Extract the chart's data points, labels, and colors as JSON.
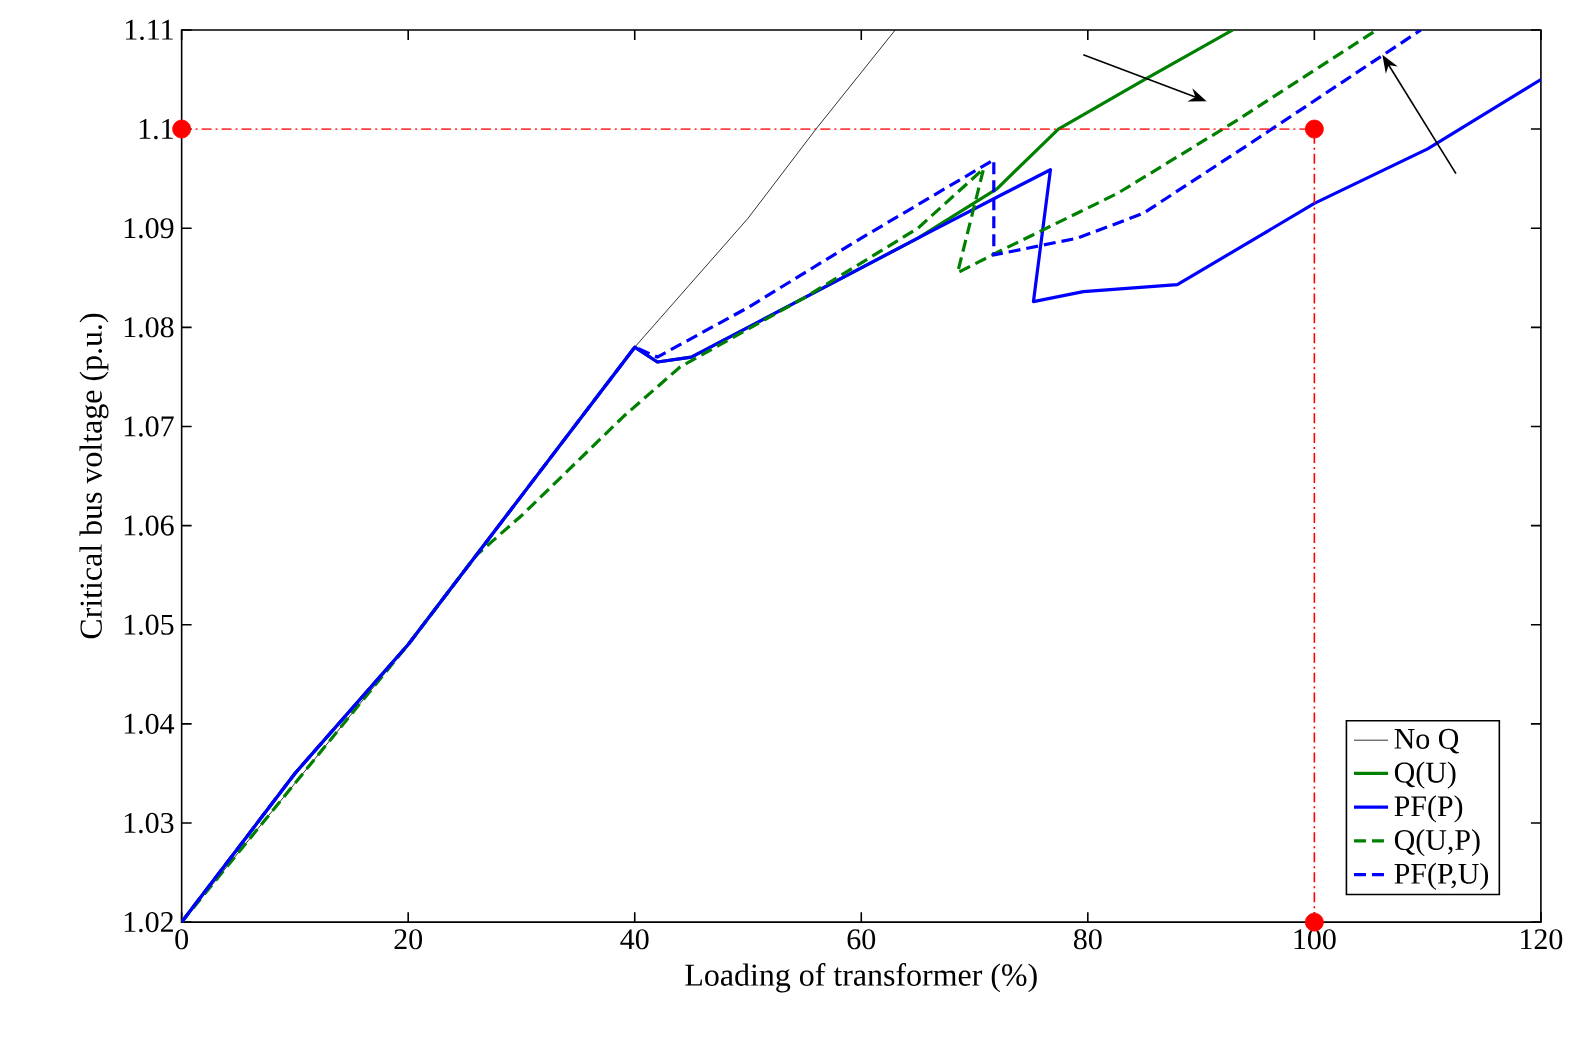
{
  "chart_data": {
    "type": "line",
    "xlabel": "Loading of transformer (%)",
    "ylabel": "Critical bus voltage (p.u.)",
    "xlim": [
      0,
      120
    ],
    "ylim": [
      1.02,
      1.11
    ],
    "xticks": [
      0,
      20,
      40,
      60,
      80,
      100,
      120
    ],
    "yticks": [
      1.02,
      1.03,
      1.04,
      1.05,
      1.06,
      1.07,
      1.08,
      1.09,
      1.1,
      1.11
    ],
    "grid": false,
    "legend": "bottom right",
    "marker": "none",
    "series": [
      {
        "name": "No Q",
        "color": "#000000",
        "line_style": "solid",
        "x": [
          0,
          10,
          20,
          30,
          40,
          50,
          56,
          63
        ],
        "values": [
          1.02,
          1.034,
          1.048,
          1.063,
          1.078,
          1.091,
          1.1,
          1.11
        ]
      },
      {
        "name": "Q(U)",
        "color": "#008000",
        "line_style": "solid",
        "x": [
          0,
          10,
          20,
          30,
          40,
          42,
          45,
          55,
          65,
          72,
          77.4,
          85,
          92.8
        ],
        "values": [
          1.02,
          1.035,
          1.048,
          1.063,
          1.078,
          1.0765,
          1.077,
          1.083,
          1.089,
          1.094,
          1.1,
          1.105,
          1.11
        ]
      },
      {
        "name": "PF(P)",
        "color": "#0000ff",
        "line_style": "solid",
        "x": [
          0,
          10,
          20,
          30,
          40,
          42,
          45,
          55,
          65,
          72.6,
          76.7,
          75.2,
          79.6,
          87.9,
          100,
          110,
          120
        ],
        "values": [
          1.02,
          1.035,
          1.048,
          1.063,
          1.078,
          1.0765,
          1.077,
          1.083,
          1.089,
          1.0935,
          1.0959,
          1.0826,
          1.0836,
          1.0843,
          1.0925,
          1.098,
          1.105
        ]
      },
      {
        "name": "Q(U,P)",
        "color": "#008000",
        "line_style": "dashed",
        "x": [
          0,
          10,
          20,
          26,
          30,
          39,
          44,
          55,
          65,
          70.8,
          68.5,
          72.6,
          82.6,
          93.2,
          105.5
        ],
        "values": [
          1.02,
          1.034,
          1.048,
          1.057,
          1.061,
          1.071,
          1.076,
          1.083,
          1.09,
          1.096,
          1.0855,
          1.0879,
          1.0935,
          1.1009,
          1.11
        ]
      },
      {
        "name": "PF(P,U)",
        "color": "#0000ff",
        "line_style": "dashed",
        "x": [
          0,
          10,
          20,
          30,
          40,
          42,
          50,
          60,
          71.7,
          71.7,
          79.1,
          84.9,
          94.4,
          109.4
        ],
        "values": [
          1.02,
          1.035,
          1.048,
          1.063,
          1.078,
          1.077,
          1.082,
          1.089,
          1.0969,
          1.0873,
          1.089,
          1.0915,
          1.0986,
          1.11
        ]
      },
      {
        "type": "scatter",
        "color": "#ff0000",
        "marker": "circle",
        "x": [
          0,
          100,
          100
        ],
        "values": [
          1.1,
          1.1,
          1.02
        ]
      }
    ],
    "ref_lines": [
      {
        "axis": "y",
        "value": 1.1,
        "color": "#ff0000",
        "line_style": "dashdot"
      },
      {
        "axis": "x",
        "value": 100,
        "color": "#ff0000",
        "line_style": "dashdot"
      }
    ]
  }
}
